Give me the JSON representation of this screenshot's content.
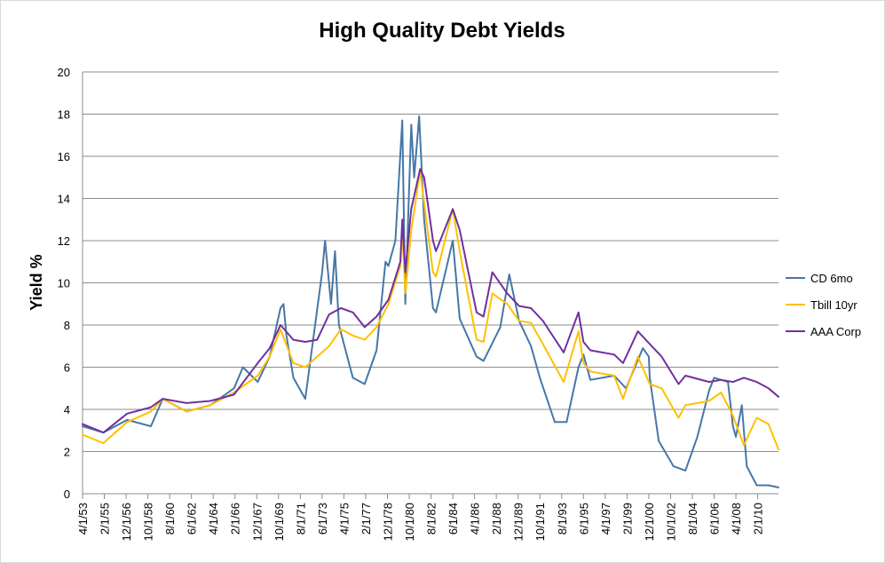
{
  "chart_data": {
    "type": "line",
    "title": "High Quality Debt Yields",
    "ylabel": "Yield %",
    "xlabel": "",
    "ylim": [
      0,
      20
    ],
    "yticks": [
      0,
      2,
      4,
      6,
      8,
      10,
      12,
      14,
      16,
      18,
      20
    ],
    "xlim": [
      "4/1/53",
      "11/1/11"
    ],
    "xtick_labels": [
      "4/1/53",
      "2/1/55",
      "12/1/56",
      "10/1/58",
      "8/1/60",
      "6/1/62",
      "4/1/64",
      "2/1/66",
      "12/1/67",
      "10/1/69",
      "8/1/71",
      "6/1/73",
      "4/1/75",
      "2/1/77",
      "12/1/78",
      "10/1/80",
      "8/1/82",
      "6/1/84",
      "4/1/86",
      "2/1/88",
      "12/1/89",
      "10/1/91",
      "8/1/93",
      "6/1/95",
      "4/1/97",
      "2/1/99",
      "12/1/00",
      "10/1/02",
      "8/1/04",
      "6/1/06",
      "4/1/08",
      "2/1/10"
    ],
    "grid": true,
    "legend_position": "right",
    "series": [
      {
        "name": "CD 6mo",
        "color": "#4677a8",
        "x": [
          "4/1/53",
          "1/1/55",
          "1/1/57",
          "1/1/59",
          "1/1/60",
          "1/1/62",
          "1/1/64",
          "1/1/66",
          "10/1/66",
          "1/1/68",
          "1/1/69",
          "12/1/69",
          "3/1/70",
          "6/1/70",
          "1/1/71",
          "1/1/72",
          "6/1/73",
          "9/1/73",
          "3/1/74",
          "7/1/74",
          "11/1/74",
          "1/1/76",
          "1/1/77",
          "1/1/78",
          "10/1/78",
          "1/1/79",
          "8/1/79",
          "3/1/80",
          "6/1/80",
          "12/1/80",
          "3/1/81",
          "8/1/81",
          "1/1/82",
          "10/1/82",
          "1/1/83",
          "6/1/84",
          "1/1/85",
          "6/1/86",
          "1/1/87",
          "6/1/88",
          "3/1/89",
          "1/1/90",
          "1/1/91",
          "10/1/91",
          "1/1/93",
          "1/1/94",
          "1/1/95",
          "6/1/95",
          "1/1/96",
          "1/1/98",
          "1/1/99",
          "6/1/00",
          "12/1/00",
          "1/1/01",
          "10/1/01",
          "1/1/03",
          "1/1/04",
          "1/1/05",
          "1/1/06",
          "6/1/06",
          "8/1/07",
          "1/1/08",
          "4/1/08",
          "10/1/08",
          "3/1/09",
          "1/1/10",
          "1/1/11",
          "11/1/11"
        ],
        "values": [
          3.2,
          2.9,
          3.5,
          3.2,
          4.5,
          3.9,
          4.2,
          5.0,
          6.0,
          5.3,
          6.5,
          8.8,
          9.0,
          7.5,
          5.5,
          4.5,
          10.5,
          12.0,
          9.0,
          11.5,
          8.0,
          5.5,
          5.2,
          6.8,
          11.0,
          10.8,
          12.0,
          17.7,
          9.0,
          17.5,
          15.0,
          17.9,
          13.0,
          8.8,
          8.6,
          12.0,
          8.3,
          6.5,
          6.3,
          7.9,
          10.4,
          8.2,
          7.0,
          5.5,
          3.4,
          3.4,
          6.0,
          6.6,
          5.4,
          5.6,
          5.0,
          6.9,
          6.5,
          5.5,
          2.5,
          1.3,
          1.1,
          2.7,
          4.9,
          5.5,
          5.3,
          3.2,
          2.7,
          4.2,
          1.3,
          0.4,
          0.4,
          0.3
        ]
      },
      {
        "name": "Tbill 10yr",
        "color": "#ffc000",
        "x": [
          "4/1/53",
          "1/1/55",
          "1/1/57",
          "1/1/59",
          "1/1/60",
          "1/1/62",
          "1/1/64",
          "1/1/66",
          "1/1/68",
          "1/1/69",
          "12/1/69",
          "1/1/71",
          "1/1/72",
          "1/1/73",
          "1/1/74",
          "1/1/75",
          "1/1/76",
          "1/1/77",
          "1/1/78",
          "1/1/79",
          "1/1/80",
          "3/1/80",
          "6/1/80",
          "12/1/80",
          "9/1/81",
          "1/1/82",
          "10/1/82",
          "1/1/83",
          "6/1/84",
          "1/1/85",
          "6/1/86",
          "1/1/87",
          "10/1/87",
          "1/1/89",
          "1/1/90",
          "1/1/91",
          "1/1/92",
          "10/1/93",
          "1/1/95",
          "6/1/95",
          "1/1/96",
          "1/1/98",
          "10/1/98",
          "1/1/00",
          "1/1/01",
          "1/1/02",
          "6/1/03",
          "1/1/04",
          "1/1/06",
          "1/1/07",
          "1/1/08",
          "12/1/08",
          "1/1/10",
          "1/1/11",
          "11/1/11"
        ],
        "values": [
          2.8,
          2.4,
          3.4,
          3.9,
          4.5,
          3.9,
          4.2,
          4.8,
          5.6,
          6.5,
          7.8,
          6.2,
          6.0,
          6.5,
          7.0,
          7.8,
          7.5,
          7.3,
          7.9,
          9.0,
          10.8,
          12.5,
          9.5,
          12.5,
          15.3,
          13.8,
          10.5,
          10.3,
          13.5,
          11.5,
          7.3,
          7.2,
          9.5,
          9.0,
          8.2,
          8.1,
          7.1,
          5.3,
          7.7,
          6.2,
          5.8,
          5.6,
          4.5,
          6.5,
          5.2,
          5.0,
          3.6,
          4.2,
          4.4,
          4.8,
          3.7,
          2.3,
          3.6,
          3.3,
          2.1
        ]
      },
      {
        "name": "AAA Corp",
        "color": "#7030a0",
        "x": [
          "4/1/53",
          "1/1/55",
          "1/1/57",
          "1/1/59",
          "1/1/60",
          "1/1/62",
          "1/1/64",
          "1/1/66",
          "1/1/68",
          "1/1/69",
          "12/1/69",
          "1/1/71",
          "1/1/72",
          "1/1/73",
          "1/1/74",
          "1/1/75",
          "1/1/76",
          "1/1/77",
          "1/1/78",
          "1/1/79",
          "1/1/80",
          "3/1/80",
          "6/1/80",
          "12/1/80",
          "9/1/81",
          "1/1/82",
          "10/1/82",
          "1/1/83",
          "6/1/84",
          "1/1/85",
          "6/1/86",
          "1/1/87",
          "10/1/87",
          "1/1/89",
          "1/1/90",
          "1/1/91",
          "1/1/92",
          "10/1/93",
          "1/1/95",
          "6/1/95",
          "1/1/96",
          "1/1/98",
          "10/1/98",
          "1/1/00",
          "1/1/01",
          "1/1/02",
          "6/1/03",
          "1/1/04",
          "1/1/06",
          "1/1/07",
          "1/1/08",
          "12/1/08",
          "1/1/10",
          "1/1/11",
          "11/1/11"
        ],
        "values": [
          3.3,
          2.9,
          3.8,
          4.1,
          4.5,
          4.3,
          4.4,
          4.7,
          6.2,
          6.9,
          8.0,
          7.3,
          7.2,
          7.3,
          8.5,
          8.8,
          8.6,
          7.9,
          8.4,
          9.2,
          11.0,
          13.0,
          10.5,
          13.5,
          15.4,
          15.0,
          12.0,
          11.5,
          13.5,
          12.5,
          8.6,
          8.4,
          10.5,
          9.5,
          8.9,
          8.8,
          8.2,
          6.7,
          8.6,
          7.2,
          6.8,
          6.6,
          6.2,
          7.7,
          7.1,
          6.5,
          5.2,
          5.6,
          5.3,
          5.4,
          5.3,
          5.5,
          5.3,
          5.0,
          4.6
        ]
      }
    ]
  }
}
